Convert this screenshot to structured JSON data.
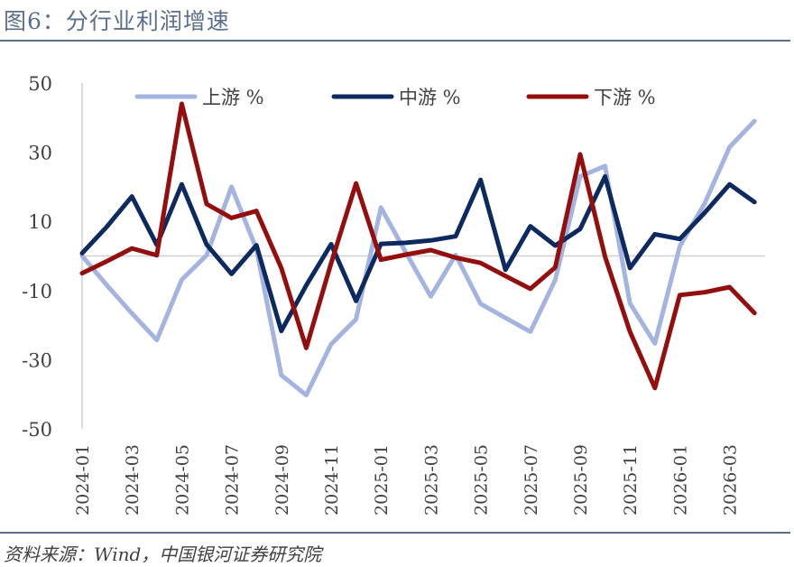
{
  "figure": {
    "title": "图6：分行业利润增速",
    "source": "资料来源：Wind，中国银河证券研究院"
  },
  "chart_data": {
    "type": "line",
    "title": "分行业利润增速",
    "xlabel": "",
    "ylabel": "",
    "ylim": [
      -50,
      50
    ],
    "yticks": [
      50,
      30,
      10,
      -10,
      -30,
      -50
    ],
    "x": [
      "2024-01",
      "2024-02",
      "2024-03",
      "2024-04",
      "2024-05",
      "2024-06",
      "2024-07",
      "2024-08",
      "2024-09",
      "2024-10",
      "2024-11",
      "2024-12",
      "2025-01",
      "2025-02",
      "2025-03",
      "2025-04",
      "2025-05",
      "2025-06",
      "2025-07",
      "2025-08",
      "2025-09",
      "2025-10",
      "2025-11",
      "2025-12",
      "2026-01",
      "2026-02",
      "2026-03",
      "2026-04"
    ],
    "xtick_labels": [
      "2024-01",
      "2024-03",
      "2024-05",
      "2024-07",
      "2024-09",
      "2024-11",
      "2025-01",
      "2025-03",
      "2025-05",
      "2025-07",
      "2025-09",
      "2025-11",
      "2026-01",
      "2026-03"
    ],
    "legend_position": "top",
    "series": [
      {
        "name": "上游 %",
        "color": "#a3b4e0",
        "values": [
          0,
          -8.5,
          -16.6,
          -24.3,
          -6.9,
          0.2,
          20,
          2,
          -34.5,
          -40.2,
          -25.5,
          -18.3,
          14,
          1,
          -11.7,
          0.3,
          -13.8,
          -17.9,
          -21.9,
          -6.9,
          23,
          26,
          -13.7,
          -25.3,
          2.8,
          15.2,
          31.5,
          39
        ]
      },
      {
        "name": "中游 %",
        "color": "#0d2a60",
        "values": [
          0.8,
          8.5,
          17.2,
          3.2,
          20.7,
          3.3,
          -5.2,
          3.1,
          -21.7,
          -8.5,
          3.4,
          -13,
          3.5,
          3.8,
          4.5,
          5.7,
          22,
          -4,
          8.6,
          3,
          7.8,
          23,
          -3.5,
          6.3,
          4.9,
          12.5,
          20.7,
          15.6
        ]
      },
      {
        "name": "下游 %",
        "color": "#950e0e",
        "values": [
          -5,
          -1.5,
          2.2,
          0.2,
          44,
          15,
          11,
          13,
          -3.5,
          -26.6,
          -2.1,
          21,
          -1.1,
          0.4,
          1.7,
          -0.5,
          -2,
          -5.8,
          -9.5,
          -3.3,
          29.4,
          -0.2,
          -21.9,
          -38.2,
          -11.3,
          -10.5,
          -9,
          -16.5
        ]
      }
    ]
  }
}
